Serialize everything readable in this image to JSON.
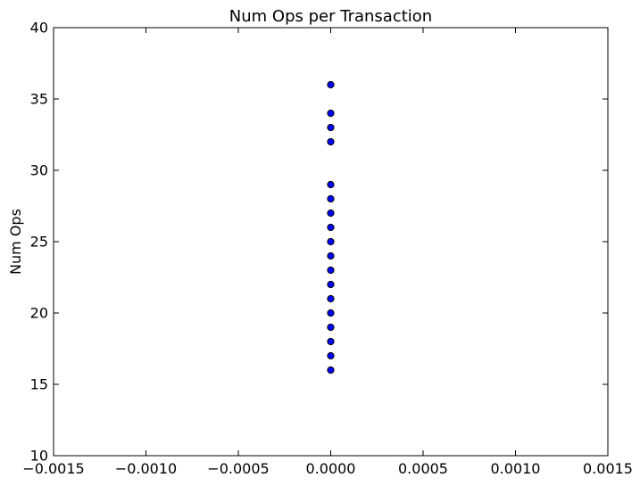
{
  "chart_data": {
    "type": "scatter",
    "title": "Num Ops per Transaction",
    "xlabel": "",
    "ylabel": "Num Ops",
    "xlim": [
      -0.0015,
      0.0015
    ],
    "ylim": [
      10,
      40
    ],
    "x_ticks": [
      -0.0015,
      -0.001,
      -0.0005,
      0.0,
      0.0005,
      0.001,
      0.0015
    ],
    "x_tick_labels": [
      "−0.0015",
      "−0.0010",
      "−0.0005",
      "0.0000",
      "0.0005",
      "0.0010",
      "0.0015"
    ],
    "y_ticks": [
      10,
      15,
      20,
      25,
      30,
      35,
      40
    ],
    "y_tick_labels": [
      "10",
      "15",
      "20",
      "25",
      "30",
      "35",
      "40"
    ],
    "grid": false,
    "series": [
      {
        "color": "#0000ff",
        "points": [
          {
            "x": 0,
            "y": 16
          },
          {
            "x": 0,
            "y": 17
          },
          {
            "x": 0,
            "y": 18
          },
          {
            "x": 0,
            "y": 19
          },
          {
            "x": 0,
            "y": 20
          },
          {
            "x": 0,
            "y": 21
          },
          {
            "x": 0,
            "y": 22
          },
          {
            "x": 0,
            "y": 23
          },
          {
            "x": 0,
            "y": 24
          },
          {
            "x": 0,
            "y": 25
          },
          {
            "x": 0,
            "y": 26
          },
          {
            "x": 0,
            "y": 27
          },
          {
            "x": 0,
            "y": 28
          },
          {
            "x": 0,
            "y": 29
          },
          {
            "x": 0,
            "y": 32
          },
          {
            "x": 0,
            "y": 33
          },
          {
            "x": 0,
            "y": 34
          },
          {
            "x": 0,
            "y": 36
          }
        ]
      }
    ]
  }
}
